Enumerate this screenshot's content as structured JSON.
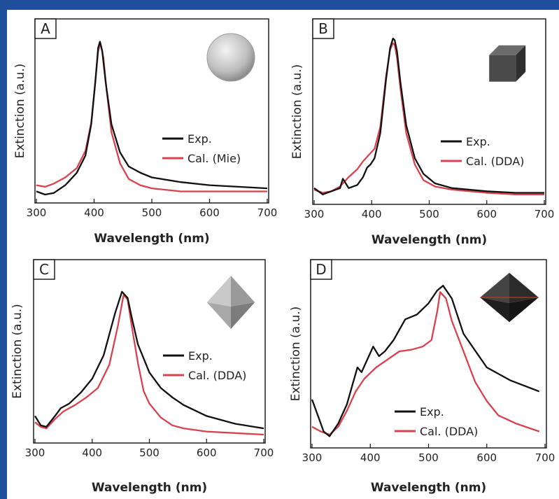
{
  "chart_data": [
    {
      "type": "line",
      "panel_label": "A",
      "xlabel": "Wavelength (nm)",
      "ylabel": "Extinction (a.u.)",
      "xlim": [
        300,
        700
      ],
      "ylim": [
        0,
        1
      ],
      "xticks": [
        300,
        400,
        500,
        600,
        700
      ],
      "icon": "sphere-icon",
      "legend_position": "right",
      "series": [
        {
          "name": "Exp.",
          "color": "#111111",
          "x": [
            300,
            315,
            330,
            350,
            370,
            385,
            395,
            402,
            407,
            410,
            414,
            420,
            430,
            445,
            460,
            480,
            500,
            550,
            600,
            650,
            700
          ],
          "y": [
            0.02,
            0.0,
            0.01,
            0.06,
            0.14,
            0.25,
            0.45,
            0.72,
            0.94,
            0.98,
            0.92,
            0.72,
            0.45,
            0.27,
            0.18,
            0.14,
            0.11,
            0.08,
            0.06,
            0.05,
            0.04
          ]
        },
        {
          "name": "Cal. (Mie)",
          "color": "#d8424f",
          "x": [
            300,
            315,
            330,
            350,
            370,
            385,
            395,
            402,
            407,
            411,
            416,
            422,
            430,
            445,
            460,
            480,
            500,
            550,
            600,
            650,
            700
          ],
          "y": [
            0.06,
            0.05,
            0.07,
            0.11,
            0.17,
            0.28,
            0.46,
            0.72,
            0.92,
            0.97,
            0.88,
            0.66,
            0.4,
            0.2,
            0.1,
            0.06,
            0.04,
            0.02,
            0.02,
            0.02,
            0.02
          ]
        }
      ]
    },
    {
      "type": "line",
      "panel_label": "B",
      "xlabel": "Wavelength (nm)",
      "ylabel": "Extinction (a.u.)",
      "xlim": [
        300,
        700
      ],
      "ylim": [
        0,
        1
      ],
      "xticks": [
        300,
        400,
        500,
        600,
        700
      ],
      "icon": "cube-icon",
      "legend_position": "right",
      "series": [
        {
          "name": "Exp.",
          "color": "#111111",
          "x": [
            300,
            315,
            330,
            345,
            350,
            360,
            375,
            385,
            392,
            398,
            405,
            415,
            425,
            432,
            437,
            440,
            444,
            450,
            460,
            475,
            490,
            510,
            540,
            600,
            650,
            700
          ],
          "y": [
            0.05,
            0.01,
            0.03,
            0.05,
            0.11,
            0.05,
            0.07,
            0.12,
            0.18,
            0.2,
            0.24,
            0.4,
            0.74,
            0.94,
            1.0,
            0.99,
            0.92,
            0.72,
            0.45,
            0.24,
            0.14,
            0.08,
            0.05,
            0.03,
            0.02,
            0.02
          ]
        },
        {
          "name": "Cal. (DDA)",
          "color": "#d8424f",
          "x": [
            300,
            315,
            330,
            345,
            360,
            375,
            385,
            395,
            405,
            415,
            425,
            432,
            437,
            440,
            444,
            450,
            460,
            475,
            490,
            510,
            540,
            600,
            650,
            700
          ],
          "y": [
            0.04,
            0.02,
            0.03,
            0.06,
            0.12,
            0.17,
            0.22,
            0.26,
            0.3,
            0.44,
            0.76,
            0.93,
            0.97,
            0.96,
            0.88,
            0.68,
            0.4,
            0.2,
            0.1,
            0.06,
            0.04,
            0.02,
            0.01,
            0.01
          ]
        }
      ]
    },
    {
      "type": "line",
      "panel_label": "C",
      "xlabel": "Wavelength (nm)",
      "ylabel": "Extinction (a.u.)",
      "xlim": [
        300,
        700
      ],
      "ylim": [
        0,
        1
      ],
      "xticks": [
        300,
        400,
        500,
        600,
        700
      ],
      "icon": "octahedron-icon",
      "legend_position": "right",
      "series": [
        {
          "name": "Exp.",
          "color": "#111111",
          "x": [
            300,
            310,
            320,
            335,
            345,
            360,
            380,
            400,
            420,
            440,
            452,
            462,
            470,
            480,
            500,
            520,
            540,
            560,
            600,
            650,
            700
          ],
          "y": [
            0.12,
            0.06,
            0.05,
            0.12,
            0.17,
            0.2,
            0.27,
            0.36,
            0.51,
            0.78,
            0.92,
            0.88,
            0.74,
            0.58,
            0.4,
            0.3,
            0.24,
            0.19,
            0.12,
            0.07,
            0.04
          ]
        },
        {
          "name": "Cal. (DDA)",
          "color": "#d8424f",
          "x": [
            300,
            310,
            320,
            335,
            350,
            370,
            390,
            410,
            430,
            445,
            455,
            462,
            470,
            480,
            490,
            500,
            520,
            540,
            560,
            600,
            650,
            700
          ],
          "y": [
            0.08,
            0.05,
            0.04,
            0.1,
            0.15,
            0.19,
            0.24,
            0.3,
            0.45,
            0.7,
            0.9,
            0.87,
            0.68,
            0.46,
            0.28,
            0.2,
            0.11,
            0.06,
            0.04,
            0.02,
            0.01,
            0.0
          ]
        }
      ]
    },
    {
      "type": "line",
      "panel_label": "D",
      "xlabel": "Wavelength (nm)",
      "ylabel": "Extinction (a.u.)",
      "xlim": [
        300,
        700
      ],
      "ylim": [
        0,
        1
      ],
      "xticks": [
        300,
        400,
        500,
        600,
        700
      ],
      "icon": "octahedron-dark-icon",
      "legend_position": "right",
      "series": [
        {
          "name": "Exp.",
          "color": "#111111",
          "x": [
            300,
            310,
            320,
            330,
            345,
            360,
            370,
            378,
            385,
            395,
            405,
            415,
            425,
            440,
            460,
            480,
            500,
            515,
            525,
            540,
            560,
            600,
            640,
            690
          ],
          "y": [
            0.25,
            0.15,
            0.05,
            0.02,
            0.1,
            0.22,
            0.35,
            0.45,
            0.42,
            0.5,
            0.58,
            0.52,
            0.55,
            0.62,
            0.75,
            0.78,
            0.85,
            0.93,
            0.96,
            0.88,
            0.66,
            0.45,
            0.37,
            0.3
          ]
        },
        {
          "name": "Cal. (DDA)",
          "color": "#d8424f",
          "x": [
            300,
            315,
            330,
            345,
            360,
            375,
            390,
            410,
            430,
            450,
            470,
            490,
            505,
            515,
            520,
            530,
            540,
            560,
            580,
            600,
            620,
            650,
            690
          ],
          "y": [
            0.08,
            0.05,
            0.03,
            0.08,
            0.18,
            0.3,
            0.38,
            0.45,
            0.5,
            0.55,
            0.56,
            0.58,
            0.62,
            0.8,
            0.92,
            0.88,
            0.74,
            0.55,
            0.36,
            0.24,
            0.15,
            0.1,
            0.05
          ]
        }
      ]
    }
  ]
}
